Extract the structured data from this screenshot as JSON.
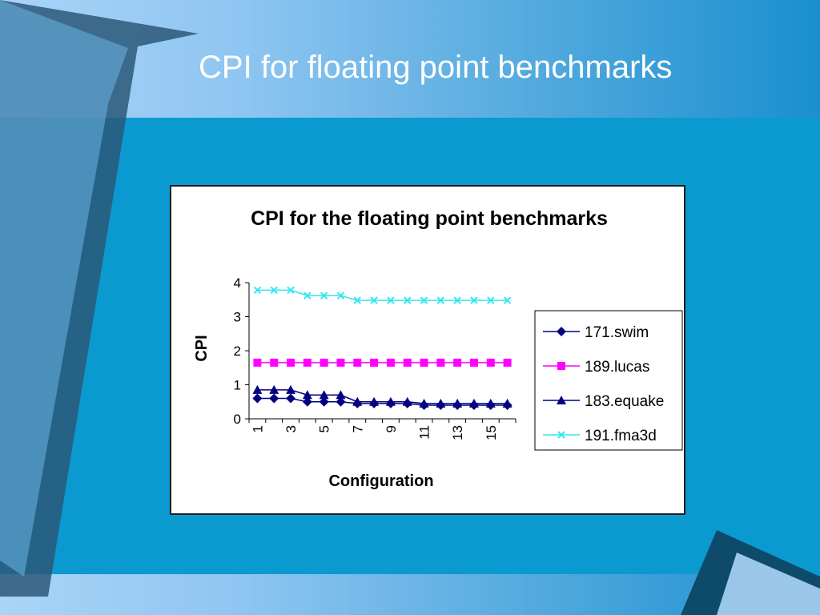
{
  "slide": {
    "title": "CPI for floating point benchmarks"
  },
  "colors": {
    "background_light": "#a9d4f7",
    "band": "#0b9ad0",
    "deco_dark": "#2b5878",
    "deco_navy": "#0e4a6a"
  },
  "chart_data": {
    "type": "line",
    "title": "CPI for the floating point benchmarks",
    "xlabel": "Configuration",
    "ylabel": "CPI",
    "x": [
      1,
      2,
      3,
      4,
      5,
      6,
      7,
      8,
      9,
      10,
      11,
      12,
      13,
      14,
      15,
      16
    ],
    "x_tick_labels": [
      "1",
      "3",
      "5",
      "7",
      "9",
      "11",
      "13",
      "15"
    ],
    "x_tick_values": [
      1,
      3,
      5,
      7,
      9,
      11,
      13,
      15
    ],
    "ylim": [
      0,
      4
    ],
    "y_ticks": [
      0,
      1,
      2,
      3,
      4
    ],
    "grid": false,
    "legend_position": "right",
    "series": [
      {
        "name": "171.swim",
        "color": "#000080",
        "marker": "diamond",
        "values": [
          0.6,
          0.6,
          0.6,
          0.5,
          0.5,
          0.5,
          0.45,
          0.45,
          0.45,
          0.45,
          0.4,
          0.4,
          0.4,
          0.4,
          0.4,
          0.4
        ]
      },
      {
        "name": "189.lucas",
        "color": "#ff00ff",
        "marker": "square",
        "values": [
          1.65,
          1.65,
          1.65,
          1.65,
          1.65,
          1.65,
          1.65,
          1.65,
          1.65,
          1.65,
          1.65,
          1.65,
          1.65,
          1.65,
          1.65,
          1.65
        ]
      },
      {
        "name": "183.equake",
        "color": "#000080",
        "marker": "triangle",
        "values": [
          0.85,
          0.85,
          0.85,
          0.7,
          0.7,
          0.7,
          0.5,
          0.5,
          0.5,
          0.5,
          0.45,
          0.45,
          0.45,
          0.45,
          0.45,
          0.45
        ]
      },
      {
        "name": "191.fma3d",
        "color": "#33e6f0",
        "marker": "x",
        "values": [
          3.78,
          3.78,
          3.78,
          3.62,
          3.62,
          3.62,
          3.48,
          3.48,
          3.48,
          3.48,
          3.48,
          3.48,
          3.48,
          3.48,
          3.48,
          3.48
        ]
      }
    ]
  }
}
